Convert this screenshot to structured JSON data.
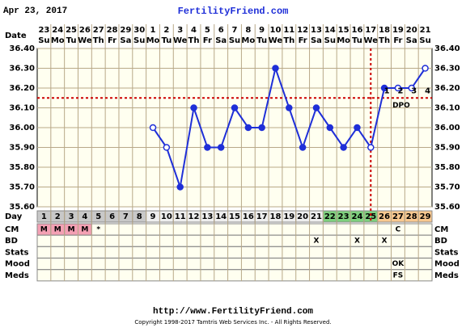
{
  "chart_data": {
    "type": "line",
    "title": "FertilityFriend.com",
    "date_title": "Apr 23, 2017",
    "date_label": "Date",
    "day_label": "Day",
    "dates": [
      23,
      24,
      25,
      26,
      27,
      28,
      29,
      30,
      1,
      2,
      3,
      4,
      5,
      6,
      7,
      8,
      9,
      10,
      11,
      12,
      13,
      14,
      15,
      16,
      17,
      18,
      19,
      20,
      21
    ],
    "weekdays": [
      "Su",
      "Mo",
      "Tu",
      "We",
      "Th",
      "Fr",
      "Sa",
      "Su",
      "Mo",
      "Tu",
      "We",
      "Th",
      "Fr",
      "Sa",
      "Su",
      "Mo",
      "Tu",
      "We",
      "Th",
      "Fr",
      "Sa",
      "Su",
      "Mo",
      "Tu",
      "We",
      "Th",
      "Fr",
      "Sa",
      "Su"
    ],
    "days": [
      1,
      2,
      3,
      4,
      5,
      6,
      7,
      8,
      9,
      10,
      11,
      12,
      13,
      14,
      15,
      16,
      17,
      18,
      19,
      20,
      21,
      22,
      23,
      24,
      25,
      26,
      27,
      28,
      29
    ],
    "day_colors": [
      "#c8c8c8",
      "#c8c8c8",
      "#c8c8c8",
      "#c8c8c8",
      "#c8c8c8",
      "#c8c8c8",
      "#c8c8c8",
      "#c8c8c8",
      "#eeeeee",
      "#eeeeee",
      "#eeeeee",
      "#eeeeee",
      "#eeeeee",
      "#eeeeee",
      "#eeeeee",
      "#eeeeee",
      "#eeeeee",
      "#eeeeee",
      "#eeeeee",
      "#eeeeee",
      "#eeeeee",
      "#7ed07e",
      "#7ed07e",
      "#7ed07e",
      "#7ed07e",
      "#f8c890",
      "#f8c890",
      "#f8c890",
      "#f8c890"
    ],
    "values": [
      null,
      null,
      null,
      null,
      null,
      null,
      null,
      null,
      36.0,
      35.9,
      35.7,
      36.1,
      35.9,
      35.9,
      36.1,
      36.0,
      36.0,
      36.3,
      36.1,
      35.9,
      36.1,
      36.0,
      35.9,
      36.0,
      35.9,
      36.2,
      36.2,
      36.2,
      36.3
    ],
    "hollow": [
      false,
      false,
      false,
      false,
      false,
      false,
      false,
      false,
      true,
      true,
      false,
      false,
      false,
      false,
      false,
      false,
      false,
      false,
      false,
      false,
      false,
      false,
      false,
      false,
      true,
      false,
      true,
      true,
      true
    ],
    "color": "#1f2fd8",
    "ylim": [
      35.6,
      36.4
    ],
    "yticks": [
      {
        "value": 35.6,
        "label": "35.60"
      },
      {
        "value": 35.7,
        "label": "35.70"
      },
      {
        "value": 35.8,
        "label": "35.80"
      },
      {
        "value": 35.9,
        "label": "35.90"
      },
      {
        "value": 36.0,
        "label": "36.00"
      },
      {
        "value": 36.1,
        "label": "36.10"
      },
      {
        "value": 36.2,
        "label": "36.20"
      },
      {
        "value": 36.3,
        "label": "36.30"
      },
      {
        "value": 36.4,
        "label": "36.40"
      }
    ],
    "coverline": 36.15,
    "ovulation_day": 25,
    "dpo": [
      1,
      2,
      3,
      4
    ],
    "dpo_label": "DPO",
    "rows": [
      {
        "name": "CM",
        "cells": [
          "M",
          "M",
          "M",
          "M",
          "*",
          null,
          null,
          null,
          null,
          null,
          null,
          null,
          null,
          null,
          null,
          null,
          null,
          null,
          null,
          null,
          null,
          null,
          null,
          null,
          null,
          null,
          "C",
          null,
          null
        ],
        "cell_colors": [
          "#f4a0b4",
          "#f4a0b4",
          "#f4a0b4",
          "#f4a0b4",
          null,
          null,
          null,
          null,
          null,
          null,
          null,
          null,
          null,
          null,
          null,
          null,
          null,
          null,
          null,
          null,
          null,
          null,
          null,
          null,
          null,
          null,
          null,
          null,
          null
        ]
      },
      {
        "name": "BD",
        "cells": [
          null,
          null,
          null,
          null,
          null,
          null,
          null,
          null,
          null,
          null,
          null,
          null,
          null,
          null,
          null,
          null,
          null,
          null,
          null,
          null,
          "X",
          null,
          null,
          "X",
          null,
          "X",
          null,
          null,
          null
        ]
      },
      {
        "name": "Stats",
        "cells": [
          null,
          null,
          null,
          null,
          null,
          null,
          null,
          null,
          null,
          null,
          null,
          null,
          null,
          null,
          null,
          null,
          null,
          null,
          null,
          null,
          null,
          null,
          null,
          null,
          null,
          null,
          null,
          null,
          null
        ]
      },
      {
        "name": "Mood",
        "cells": [
          null,
          null,
          null,
          null,
          null,
          null,
          null,
          null,
          null,
          null,
          null,
          null,
          null,
          null,
          null,
          null,
          null,
          null,
          null,
          null,
          null,
          null,
          null,
          null,
          null,
          null,
          "OK",
          null,
          null
        ]
      },
      {
        "name": "Meds",
        "cells": [
          null,
          null,
          null,
          null,
          null,
          null,
          null,
          null,
          null,
          null,
          null,
          null,
          null,
          null,
          null,
          null,
          null,
          null,
          null,
          null,
          null,
          null,
          null,
          null,
          null,
          null,
          "FS",
          null,
          null
        ]
      }
    ],
    "url": "http://www.FertilityFriend.com",
    "copyright": "Copyright 1998-2017 Tamtris Web Services Inc. - All Rights Reserved."
  }
}
